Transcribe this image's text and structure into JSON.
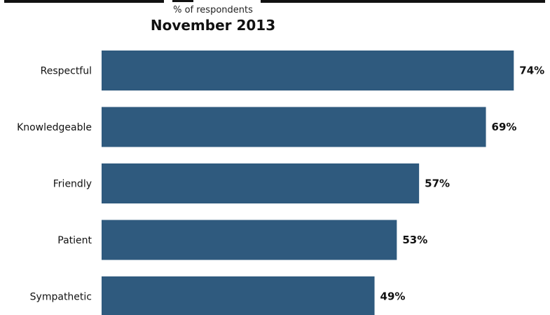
{
  "chart_data": {
    "type": "bar",
    "orientation": "horizontal",
    "subtitle": "% of respondents",
    "period": "November 2013",
    "categories": [
      "Respectful",
      "Knowledgeable",
      "Friendly",
      "Patient",
      "Sympathetic"
    ],
    "values": [
      74,
      69,
      57,
      53,
      49
    ],
    "value_labels": [
      "74%",
      "69%",
      "57%",
      "53%",
      "49%"
    ],
    "bar_color": "#2f5a7e",
    "grid": false,
    "legend": "none"
  }
}
